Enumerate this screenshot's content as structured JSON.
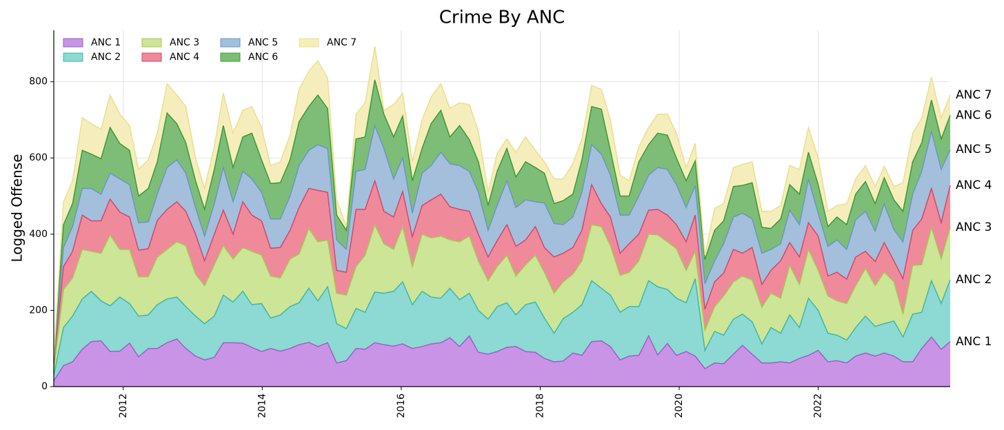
{
  "chart_data": {
    "type": "stacked_area",
    "title": "Crime By ANC",
    "y_label": "Logged Offense",
    "x": [
      2011,
      2011.14,
      2011.27,
      2011.41,
      2011.54,
      2011.68,
      2011.81,
      2011.95,
      2012.09,
      2012.22,
      2012.36,
      2012.49,
      2012.63,
      2012.77,
      2012.9,
      2013.04,
      2013.17,
      2013.31,
      2013.44,
      2013.58,
      2013.72,
      2013.85,
      2013.99,
      2014.12,
      2014.26,
      2014.4,
      2014.53,
      2014.67,
      2014.8,
      2014.94,
      2015.07,
      2015.21,
      2015.35,
      2015.48,
      2015.62,
      2015.75,
      2015.89,
      2016.02,
      2016.16,
      2016.3,
      2016.43,
      2016.57,
      2016.7,
      2016.84,
      2016.98,
      2017.11,
      2017.25,
      2017.38,
      2017.52,
      2017.65,
      2017.79,
      2017.93,
      2018.06,
      2018.2,
      2018.33,
      2018.47,
      2018.6,
      2018.74,
      2018.88,
      2019.01,
      2019.15,
      2019.28,
      2019.42,
      2019.56,
      2019.69,
      2019.83,
      2019.96,
      2020.1,
      2020.23,
      2020.37,
      2020.51,
      2020.64,
      2020.78,
      2020.91,
      2021.05,
      2021.19,
      2021.32,
      2021.46,
      2021.59,
      2021.73,
      2021.86,
      2022,
      2022.14,
      2022.27,
      2022.41,
      2022.54,
      2022.68,
      2022.82,
      2022.95,
      2023.09,
      2023.22,
      2023.36,
      2023.49,
      2023.63,
      2023.77,
      2023.9
    ],
    "series": [
      {
        "name": "ANC 1",
        "color": "#c994e6",
        "line": "#9d5fc7",
        "label_color": "#b26fd6",
        "values": [
          15,
          55,
          65,
          98,
          118,
          120,
          92,
          93,
          114,
          78,
          100,
          100,
          115,
          125,
          100,
          80,
          70,
          77,
          115,
          115,
          114,
          103,
          92,
          100,
          93,
          100,
          110,
          116,
          105,
          115,
          62,
          68,
          100,
          98,
          115,
          110,
          106,
          112,
          100,
          105,
          112,
          115,
          128,
          105,
          133,
          90,
          85,
          92,
          103,
          105,
          92,
          90,
          74,
          65,
          67,
          88,
          82,
          118,
          120,
          105,
          70,
          80,
          82,
          133,
          83,
          113,
          82,
          92,
          80,
          47,
          62,
          60,
          85,
          108,
          85,
          62,
          62,
          65,
          62,
          74,
          82,
          95,
          65,
          68,
          62,
          80,
          88,
          80,
          88,
          80,
          65,
          65,
          100,
          130,
          98,
          118
        ]
      },
      {
        "name": "ANC 2",
        "color": "#8dd9d3",
        "line": "#3cb8a8",
        "label_color": "#4ec4b6",
        "values": [
          15,
          100,
          120,
          132,
          132,
          105,
          120,
          142,
          104,
          107,
          88,
          115,
          115,
          110,
          110,
          105,
          95,
          108,
          125,
          107,
          136,
          112,
          126,
          80,
          95,
          110,
          110,
          142,
          120,
          147,
          103,
          84,
          105,
          97,
          133,
          135,
          144,
          163,
          115,
          145,
          123,
          117,
          130,
          123,
          112,
          110,
          92,
          118,
          117,
          83,
          123,
          132,
          106,
          75,
          111,
          107,
          133,
          160,
          138,
          135,
          125,
          130,
          128,
          145,
          179,
          142,
          150,
          128,
          203,
          48,
          83,
          75,
          92,
          82,
          85,
          50,
          93,
          75,
          126,
          81,
          150,
          105,
          75,
          67,
          60,
          75,
          97,
          78,
          77,
          92,
          65,
          125,
          95,
          148,
          120,
          162
        ]
      },
      {
        "name": "ANC 3",
        "color": "#cde596",
        "line": "#a3c952",
        "label_color": "#a9d35c",
        "values": [
          15,
          100,
          100,
          130,
          105,
          125,
          186,
          125,
          142,
          103,
          100,
          125,
          130,
          145,
          160,
          110,
          100,
          135,
          130,
          113,
          115,
          140,
          127,
          110,
          97,
          125,
          128,
          157,
          155,
          123,
          80,
          88,
          110,
          150,
          177,
          130,
          110,
          145,
          100,
          150,
          155,
          163,
          127,
          152,
          150,
          130,
          101,
          105,
          125,
          102,
          105,
          123,
          120,
          105,
          97,
          100,
          115,
          147,
          162,
          130,
          97,
          90,
          120,
          122,
          136,
          125,
          130,
          85,
          72,
          53,
          65,
          103,
          98,
          100,
          110,
          96,
          90,
          92,
          130,
          113,
          128,
          105,
          98,
          90,
          96,
          110,
          125,
          107,
          135,
          103,
          60,
          128,
          125,
          140,
          117,
          138
        ]
      },
      {
        "name": "ANC 4",
        "color": "#ef8a9a",
        "line": "#d6456a",
        "label_color": "#d6456a",
        "values": [
          15,
          60,
          70,
          90,
          80,
          85,
          94,
          98,
          85,
          70,
          74,
          96,
          105,
          105,
          90,
          105,
          65,
          80,
          93,
          65,
          120,
          95,
          90,
          73,
          80,
          75,
          122,
          105,
          135,
          125,
          60,
          60,
          150,
          120,
          115,
          85,
          85,
          92,
          78,
          75,
          100,
          110,
          87,
          85,
          65,
          70,
          62,
          68,
          80,
          78,
          65,
          75,
          65,
          95,
          75,
          70,
          80,
          105,
          60,
          75,
          58,
          75,
          70,
          63,
          67,
          70,
          63,
          75,
          95,
          55,
          65,
          60,
          85,
          60,
          85,
          60,
          60,
          98,
          60,
          72,
          70,
          90,
          52,
          75,
          64,
          75,
          45,
          63,
          78,
          55,
          93,
          92,
          120,
          102,
          95,
          110
        ]
      },
      {
        "name": "ANC 5",
        "color": "#a3bfdc",
        "line": "#6a96c2",
        "label_color": "#6a96c2",
        "values": [
          5,
          50,
          65,
          70,
          85,
          70,
          68,
          87,
          85,
          72,
          70,
          69,
          110,
          110,
          100,
          70,
          65,
          80,
          112,
          85,
          80,
          95,
          75,
          77,
          75,
          90,
          110,
          100,
          120,
          115,
          80,
          60,
          100,
          105,
          145,
          165,
          100,
          88,
          62,
          85,
          90,
          110,
          113,
          115,
          105,
          110,
          70,
          92,
          115,
          102,
          105,
          65,
          117,
          88,
          75,
          80,
          100,
          105,
          130,
          110,
          100,
          75,
          100,
          92,
          110,
          120,
          105,
          90,
          77,
          67,
          55,
          77,
          85,
          105,
          75,
          82,
          55,
          45,
          85,
          85,
          115,
          60,
          78,
          85,
          78,
          98,
          105,
          80,
          102,
          82,
          97,
          95,
          125,
          150,
          140,
          94
        ]
      },
      {
        "name": "ANC 6",
        "color": "#7dbd78",
        "line": "#3a9a35",
        "label_color": "#3a9a35",
        "values": [
          5,
          60,
          60,
          100,
          90,
          93,
          120,
          93,
          90,
          70,
          88,
          85,
          143,
          95,
          80,
          70,
          70,
          90,
          110,
          90,
          90,
          120,
          85,
          93,
          95,
          95,
          115,
          115,
          130,
          105,
          65,
          50,
          85,
          85,
          120,
          90,
          110,
          110,
          85,
          65,
          110,
          110,
          70,
          105,
          83,
          80,
          65,
          90,
          85,
          80,
          100,
          90,
          78,
          52,
          63,
          60,
          85,
          100,
          118,
          65,
          50,
          50,
          90,
          80,
          90,
          90,
          70,
          70,
          65,
          63,
          80,
          60,
          80,
          73,
          95,
          68,
          55,
          65,
          67,
          80,
          70,
          75,
          52,
          60,
          65,
          67,
          78,
          72,
          68,
          78,
          80,
          85,
          75,
          82,
          80,
          90
        ]
      },
      {
        "name": "ANC 7",
        "color": "#f5eebc",
        "line": "#ebdf8c",
        "label_color": "#ebdf8c",
        "values": [
          5,
          60,
          60,
          85,
          80,
          77,
          85,
          77,
          65,
          70,
          75,
          75,
          77,
          75,
          95,
          60,
          55,
          60,
          85,
          90,
          70,
          70,
          85,
          47,
          55,
          65,
          85,
          93,
          90,
          80,
          40,
          10,
          65,
          90,
          88,
          10,
          85,
          60,
          50,
          75,
          70,
          70,
          75,
          60,
          92,
          80,
          35,
          47,
          25,
          65,
          65,
          45,
          30,
          65,
          57,
          80,
          55,
          55,
          52,
          80,
          55,
          40,
          40,
          45,
          50,
          55,
          65,
          35,
          46,
          12,
          58,
          45,
          50,
          55,
          55,
          42,
          45,
          35,
          50,
          65,
          65,
          70,
          40,
          30,
          55,
          40,
          42,
          45,
          30,
          35,
          75,
          75,
          65,
          60,
          55,
          53
        ]
      }
    ],
    "xlim": [
      2011,
      2023.9
    ],
    "xticks": [
      2012,
      2014,
      2016,
      2018,
      2020,
      2022
    ],
    "ylim": [
      0,
      935
    ],
    "yticks": [
      0,
      200,
      400,
      600,
      800
    ],
    "grid": true,
    "legend": "upper left"
  }
}
